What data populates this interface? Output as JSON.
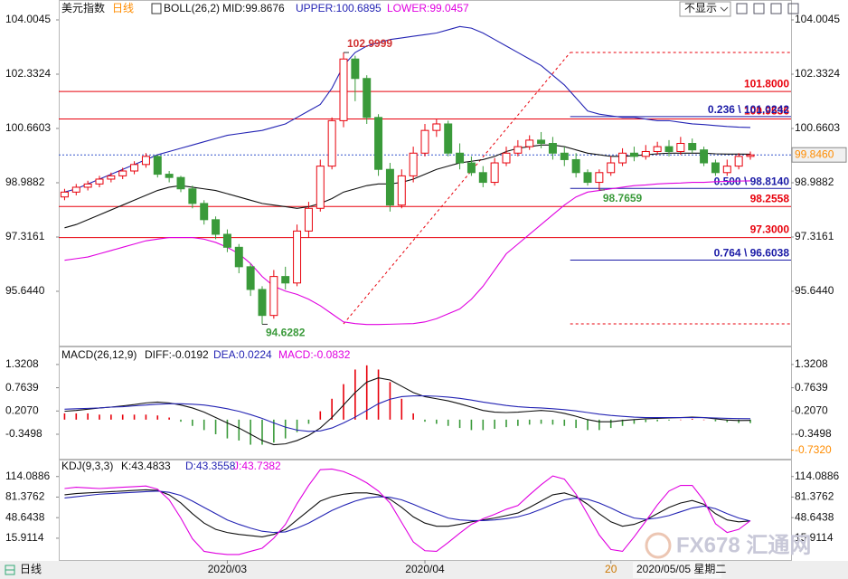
{
  "chart_data": [
    {
      "type": "candlestick",
      "title": "美元指数",
      "period": "日线",
      "indicator": "BOLL(26,2)",
      "up_color": "#e8000b",
      "down_color": "#3a9a3a",
      "x": [
        0,
        1,
        2,
        3,
        4,
        5,
        6,
        7,
        8,
        9,
        10,
        11,
        12,
        13,
        14,
        15,
        16,
        17,
        18,
        19,
        20,
        21,
        22,
        23,
        24,
        25,
        26,
        27,
        28,
        29,
        30,
        31,
        32,
        33,
        34,
        35,
        36,
        37,
        38,
        39,
        40,
        41,
        42,
        43,
        44,
        45,
        46,
        47,
        48,
        49,
        50,
        51,
        52,
        53,
        54,
        55,
        56,
        57,
        58,
        59
      ],
      "xlim": [
        -0.5,
        62.5
      ],
      "open": [
        98.55,
        98.7,
        98.85,
        98.95,
        99.1,
        99.2,
        99.35,
        99.55,
        99.8,
        99.25,
        99.15,
        98.8,
        98.35,
        97.85,
        97.4,
        97.0,
        96.4,
        95.7,
        94.9,
        96.1,
        95.9,
        97.5,
        98.2,
        99.5,
        100.9,
        102.8,
        102.2,
        101.0,
        99.4,
        98.3,
        99.2,
        99.9,
        100.6,
        100.8,
        99.9,
        99.6,
        99.3,
        99.0,
        99.6,
        99.9,
        100.1,
        100.3,
        100.2,
        99.9,
        99.7,
        99.3,
        99.0,
        99.3,
        99.6,
        99.9,
        99.8,
        99.95,
        100.1,
        99.95,
        100.2,
        100.0,
        99.6,
        99.3,
        99.5,
        99.8
      ],
      "high": [
        98.8,
        98.95,
        99.05,
        99.2,
        99.3,
        99.45,
        99.65,
        99.9,
        99.85,
        99.35,
        99.2,
        98.9,
        98.45,
        97.95,
        97.55,
        97.1,
        96.5,
        95.8,
        96.3,
        96.4,
        97.7,
        98.4,
        99.7,
        101.0,
        102.9999,
        102.9,
        102.3,
        101.1,
        99.6,
        99.4,
        100.1,
        100.8,
        100.95,
        100.9,
        100.2,
        99.8,
        99.5,
        99.75,
        100.1,
        100.3,
        100.45,
        100.55,
        100.4,
        100.1,
        99.9,
        99.4,
        99.4,
        99.8,
        100.05,
        100.1,
        100.15,
        100.25,
        100.3,
        100.4,
        100.35,
        100.1,
        99.7,
        99.7,
        99.9,
        99.95
      ],
      "low": [
        98.45,
        98.6,
        98.75,
        98.85,
        99.0,
        99.1,
        99.25,
        99.45,
        99.15,
        99.0,
        98.7,
        98.2,
        97.7,
        97.25,
        96.85,
        96.2,
        95.5,
        94.6282,
        94.8,
        95.7,
        95.8,
        97.3,
        98.1,
        99.4,
        100.7,
        101.5,
        100.8,
        99.2,
        98.1,
        98.2,
        99.0,
        99.8,
        100.4,
        99.8,
        99.4,
        99.2,
        98.85,
        98.9,
        99.5,
        99.8,
        100.0,
        100.05,
        99.7,
        99.5,
        99.15,
        98.9,
        98.7659,
        99.2,
        99.5,
        99.65,
        99.7,
        99.85,
        99.8,
        99.85,
        99.9,
        99.5,
        99.2,
        99.2,
        99.4,
        99.7
      ],
      "close": [
        98.7,
        98.85,
        98.95,
        99.1,
        99.2,
        99.35,
        99.55,
        99.8,
        99.25,
        99.15,
        98.8,
        98.35,
        97.85,
        97.4,
        97.0,
        96.4,
        95.7,
        94.9,
        96.1,
        95.9,
        97.5,
        98.2,
        99.5,
        100.9,
        102.8,
        102.2,
        101.0,
        99.4,
        98.3,
        99.2,
        99.9,
        100.6,
        100.8,
        99.9,
        99.6,
        99.3,
        99.0,
        99.6,
        99.9,
        100.1,
        100.3,
        100.2,
        99.9,
        99.7,
        99.3,
        99.0,
        99.3,
        99.6,
        99.9,
        99.8,
        99.95,
        100.1,
        99.95,
        100.2,
        100.0,
        99.6,
        99.3,
        99.5,
        99.8,
        99.846
      ],
      "series": [
        {
          "name": "MID:99.8676",
          "color": "#111111",
          "values": [
            97.6,
            97.7,
            97.85,
            98.0,
            98.15,
            98.3,
            98.45,
            98.6,
            98.75,
            98.85,
            98.9,
            98.85,
            98.8,
            98.75,
            98.65,
            98.55,
            98.45,
            98.35,
            98.3,
            98.25,
            98.2,
            98.25,
            98.35,
            98.5,
            98.7,
            98.8,
            98.9,
            98.95,
            98.95,
            99.0,
            99.1,
            99.25,
            99.4,
            99.5,
            99.6,
            99.65,
            99.7,
            99.8,
            99.95,
            100.05,
            100.1,
            100.15,
            100.15,
            100.1,
            100.0,
            99.9,
            99.85,
            99.8,
            99.8,
            99.82,
            99.85,
            99.88,
            99.9,
            99.9,
            99.9,
            99.9,
            99.88,
            99.87,
            99.87,
            99.8676
          ]
        },
        {
          "name": "UPPER:100.6895",
          "color": "#2424b4",
          "values": [
            98.7,
            98.8,
            98.95,
            99.1,
            99.25,
            99.4,
            99.55,
            99.7,
            99.85,
            99.95,
            100.05,
            100.15,
            100.25,
            100.35,
            100.45,
            100.5,
            100.55,
            100.6,
            100.7,
            100.8,
            101.0,
            101.2,
            101.4,
            101.9,
            102.6,
            103.0,
            103.2,
            103.3,
            103.4,
            103.45,
            103.5,
            103.55,
            103.6,
            103.7,
            103.8,
            103.75,
            103.6,
            103.4,
            103.2,
            103.0,
            102.8,
            102.6,
            102.3,
            102.0,
            101.6,
            101.2,
            101.1,
            101.05,
            101.0,
            101.0,
            100.95,
            100.9,
            100.9,
            100.85,
            100.8,
            100.78,
            100.75,
            100.72,
            100.7,
            100.6895
          ]
        },
        {
          "name": "LOWER:99.0457",
          "color": "#e000e0",
          "values": [
            96.6,
            96.65,
            96.7,
            96.8,
            96.9,
            97.0,
            97.1,
            97.2,
            97.25,
            97.3,
            97.3,
            97.3,
            97.25,
            97.15,
            97.0,
            96.8,
            96.5,
            96.1,
            95.8,
            95.65,
            95.55,
            95.4,
            95.2,
            94.95,
            94.7,
            94.65,
            94.62,
            94.62,
            94.63,
            94.64,
            94.65,
            94.7,
            94.8,
            94.95,
            95.1,
            95.4,
            95.8,
            96.3,
            96.8,
            97.1,
            97.4,
            97.7,
            98.0,
            98.3,
            98.55,
            98.7,
            98.75,
            98.8,
            98.85,
            98.9,
            98.92,
            98.95,
            98.97,
            98.98,
            99.0,
            99.0,
            99.02,
            99.03,
            99.04,
            99.0457
          ]
        }
      ],
      "ylim": [
        94.027,
        104.116
      ],
      "yticks": [
        104.0045,
        102.3324,
        100.6603,
        98.9882,
        97.3161,
        {
          "value": 95.644,
          "label": "95.6440"
        }
      ],
      "levels": [
        {
          "value": 101.8,
          "label": "101.8000",
          "color": "#e8000b"
        },
        {
          "value": 100.9536,
          "label": "100.9536",
          "color": "#e8000b"
        },
        {
          "value": 98.2558,
          "label": "98.2558",
          "color": "#e8000b"
        },
        {
          "value": 97.3,
          "label": "97.3000",
          "color": "#e8000b"
        }
      ],
      "fib_start": 43.5,
      "fib_levels": [
        {
          "value": 103.0,
          "color": "#e8000b",
          "style": "dashed"
        },
        {
          "value": 101.0242,
          "label": "0.236 \\ 101.0242",
          "color": "#1a1aa6"
        },
        {
          "value": 98.814,
          "label": "0.500 \\ 98.8140",
          "color": "#1a1aa6"
        },
        {
          "value": 96.6038,
          "label": "0.764 \\ 96.6038",
          "color": "#1a1aa6"
        },
        {
          "value": 94.64,
          "color": "#e8000b",
          "style": "dashed"
        }
      ],
      "trendline": {
        "x": [
          24,
          43.5
        ],
        "y": [
          94.64,
          103.0
        ],
        "color": "#e8000b"
      },
      "annotations": [
        {
          "x": 24,
          "y": 102.9999,
          "color": "#d03030"
        },
        {
          "x": 17,
          "y": 94.6282,
          "color": "#3a9a3a"
        },
        {
          "x": 46,
          "y": 98.7659,
          "color": "#3a9a3a"
        }
      ],
      "last": {
        "value": 99.846,
        "label": "99.8460",
        "color": "#ff8c00"
      }
    },
    {
      "type": "macd",
      "title": "MACD(26,12,9)",
      "xlim": [
        -0.5,
        62.5
      ],
      "series": [
        {
          "name": "DIFF:-0.0192",
          "color": "#111111",
          "values": [
            0.2,
            0.22,
            0.25,
            0.28,
            0.3,
            0.33,
            0.36,
            0.4,
            0.42,
            0.4,
            0.35,
            0.28,
            0.18,
            0.05,
            -0.08,
            -0.2,
            -0.35,
            -0.5,
            -0.6,
            -0.58,
            -0.5,
            -0.38,
            -0.2,
            0.05,
            0.35,
            0.65,
            0.9,
            1.0,
            0.95,
            0.8,
            0.65,
            0.55,
            0.5,
            0.45,
            0.38,
            0.3,
            0.22,
            0.18,
            0.17,
            0.18,
            0.2,
            0.22,
            0.2,
            0.15,
            0.08,
            0.0,
            -0.05,
            -0.05,
            -0.02,
            0.0,
            0.02,
            0.03,
            0.04,
            0.05,
            0.06,
            0.05,
            0.02,
            -0.01,
            -0.02,
            -0.0192
          ]
        },
        {
          "name": "DEA:0.0224",
          "color": "#2424b4",
          "values": [
            0.25,
            0.26,
            0.27,
            0.28,
            0.3,
            0.31,
            0.33,
            0.35,
            0.37,
            0.38,
            0.38,
            0.37,
            0.35,
            0.31,
            0.26,
            0.2,
            0.12,
            0.03,
            -0.08,
            -0.18,
            -0.25,
            -0.28,
            -0.27,
            -0.2,
            -0.08,
            0.06,
            0.22,
            0.38,
            0.49,
            0.55,
            0.57,
            0.57,
            0.56,
            0.54,
            0.51,
            0.47,
            0.42,
            0.38,
            0.34,
            0.31,
            0.29,
            0.28,
            0.26,
            0.24,
            0.21,
            0.17,
            0.13,
            0.1,
            0.08,
            0.06,
            0.05,
            0.05,
            0.05,
            0.05,
            0.05,
            0.05,
            0.04,
            0.03,
            0.025,
            0.0224
          ]
        },
        {
          "name": "MACD:-0.0832",
          "color": "#e000e0",
          "kind": "bar",
          "up_color": "#e8000b",
          "down_color": "#3a9a3a",
          "values": [
            0.15,
            0.15,
            0.15,
            0.12,
            0.12,
            0.12,
            0.12,
            0.12,
            0.1,
            0.05,
            -0.05,
            -0.15,
            -0.25,
            -0.35,
            -0.45,
            -0.5,
            -0.6,
            -0.6,
            -0.55,
            -0.45,
            -0.3,
            -0.1,
            0.2,
            0.5,
            0.85,
            1.2,
            1.3,
            1.2,
            0.9,
            0.5,
            0.15,
            -0.05,
            -0.1,
            -0.15,
            -0.2,
            -0.25,
            -0.25,
            -0.22,
            -0.18,
            -0.15,
            -0.12,
            -0.1,
            -0.12,
            -0.15,
            -0.2,
            -0.25,
            -0.25,
            -0.2,
            -0.15,
            -0.1,
            -0.06,
            -0.04,
            -0.02,
            0,
            0.02,
            0,
            -0.04,
            -0.06,
            -0.08,
            -0.0832
          ]
        }
      ],
      "ylim": [
        -1.0,
        1.6
      ],
      "yticks": [
        1.3208,
        0.7639,
        {
          "value": 0.207,
          "label": "0.2070"
        },
        -0.3498
      ],
      "right_marker": {
        "value": -0.732,
        "label": "-0.7320",
        "color": "#ff8c00"
      }
    },
    {
      "type": "line",
      "title": "KDJ(9,3,3)",
      "xlim": [
        -0.5,
        62.5
      ],
      "series": [
        {
          "name": "K:43.4833",
          "color": "#111111",
          "values": [
            85,
            87,
            88,
            89,
            90,
            91,
            92,
            93,
            92,
            85,
            72,
            55,
            40,
            30,
            25,
            22,
            20,
            18,
            22,
            30,
            45,
            60,
            75,
            82,
            86,
            88,
            88,
            85,
            78,
            65,
            50,
            40,
            35,
            35,
            38,
            42,
            45,
            48,
            52,
            56,
            65,
            75,
            85,
            88,
            82,
            70,
            55,
            42,
            35,
            38,
            45,
            55,
            65,
            72,
            76,
            70,
            55,
            45,
            42,
            43.4833
          ]
        },
        {
          "name": "D:43.3558",
          "color": "#2424b4",
          "values": [
            80,
            82,
            84,
            86,
            87,
            88,
            89,
            90,
            91,
            89,
            84,
            75,
            65,
            55,
            45,
            38,
            32,
            27,
            25,
            26,
            32,
            40,
            50,
            60,
            68,
            75,
            80,
            82,
            81,
            77,
            70,
            62,
            55,
            48,
            45,
            44,
            44,
            45,
            47,
            50,
            55,
            62,
            70,
            77,
            80,
            78,
            72,
            64,
            55,
            48,
            46,
            48,
            52,
            58,
            64,
            67,
            63,
            55,
            48,
            43.3558
          ]
        },
        {
          "name": "J:43.7382",
          "color": "#e000e0",
          "values": [
            95,
            97,
            96,
            95,
            96,
            97,
            98,
            99,
            94,
            77,
            48,
            15,
            -5,
            -8,
            -10,
            -10,
            -5,
            0,
            16,
            38,
            71,
            100,
            125,
            126,
            122,
            114,
            104,
            91,
            72,
            41,
            10,
            -4,
            -5,
            9,
            24,
            38,
            47,
            54,
            62,
            68,
            85,
            101,
            115,
            110,
            86,
            54,
            21,
            -2,
            -5,
            18,
            43,
            69,
            91,
            100,
            100,
            76,
            39,
            25,
            30,
            43.7382
          ]
        }
      ],
      "ylim": [
        -13,
        131
      ],
      "yticks": [
        114.0886,
        81.3762,
        48.6438,
        15.9114
      ],
      "xticks": [
        {
          "value": 14,
          "label": "2020/03"
        },
        {
          "value": 31,
          "label": "2020/04"
        },
        {
          "value": 47,
          "label": "20"
        }
      ]
    }
  ],
  "ui": {
    "button": "不显示",
    "tab": "日线",
    "crosshair_date": "2020/05/05 星期二",
    "watermark": "FX678 汇通网"
  }
}
